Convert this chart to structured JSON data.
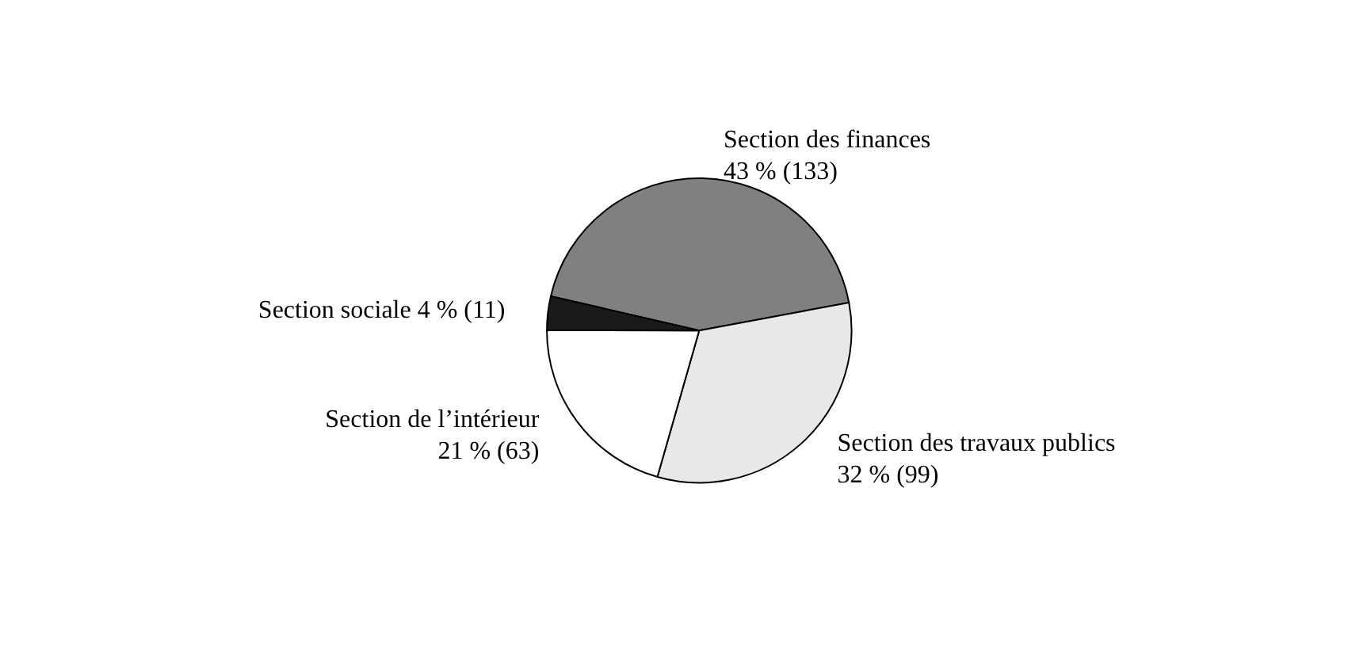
{
  "chart_data": {
    "type": "pie",
    "categories": [
      "Section des finances",
      "Section des travaux publics",
      "Section de l’intérieur",
      "Section sociale"
    ],
    "values": [
      133,
      99,
      63,
      11
    ],
    "value_labels": [
      "43 % (133)",
      "32 % (99)",
      "21 % (63)",
      "4 % (11)"
    ],
    "colors": [
      "#808083",
      "#e8e8e8",
      "#ffffff",
      "#1a1a1a"
    ],
    "legend": false
  }
}
